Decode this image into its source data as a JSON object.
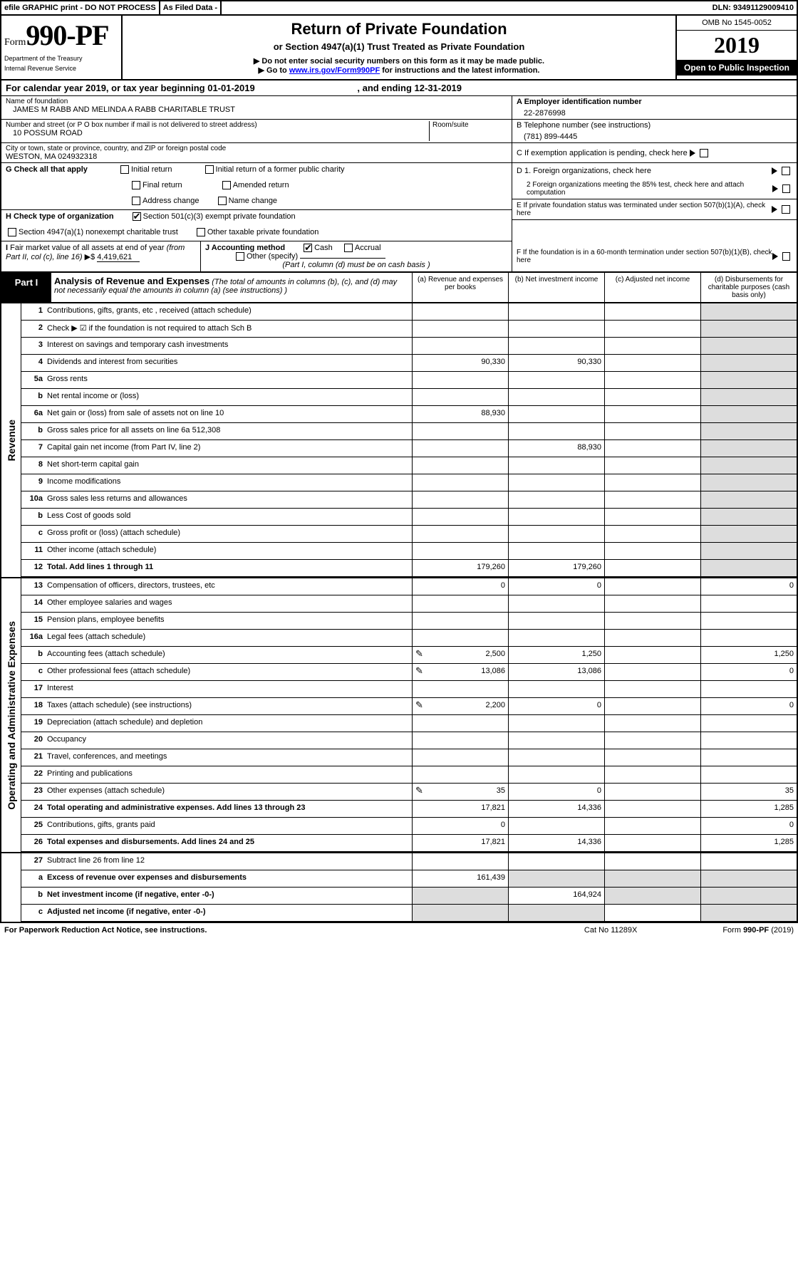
{
  "topbar": {
    "efile": "efile GRAPHIC print - DO NOT PROCESS",
    "asfiled": "As Filed Data -",
    "dln": "DLN: 93491129009410"
  },
  "hdr": {
    "formword": "Form",
    "formnum": "990-PF",
    "dept": "Department of the Treasury",
    "irs": "Internal Revenue Service",
    "title": "Return of Private Foundation",
    "sub": "or Section 4947(a)(1) Trust Treated as Private Foundation",
    "note1": "▶ Do not enter social security numbers on this form as it may be made public.",
    "note2": "▶ Go to ",
    "link": "www.irs.gov/Form990PF",
    "note3": " for instructions and the latest information.",
    "omb": "OMB No 1545-0052",
    "year": "2019",
    "badge": "Open to Public Inspection"
  },
  "cal": {
    "a": "For calendar year 2019, or tax year beginning 01-01-2019",
    "b": ", and ending 12-31-2019"
  },
  "name": {
    "lab": "Name of foundation",
    "val": "JAMES M RABB AND MELINDA A RABB CHARITABLE TRUST"
  },
  "ein": {
    "lab": "A Employer identification number",
    "val": "22-2876998"
  },
  "addr": {
    "lab": "Number and street (or P O  box number if mail is not delivered to street address)",
    "val": "10 POSSUM ROAD",
    "room": "Room/suite"
  },
  "tel": {
    "lab": "B Telephone number (see instructions)",
    "val": "(781) 899-4445"
  },
  "city": {
    "lab": "City or town, state or province, country, and ZIP or foreign postal code",
    "val": "WESTON, MA  024932318"
  },
  "c": {
    "lab": "C If exemption application is pending, check here"
  },
  "g": {
    "lab": "G Check all that apply",
    "o1": "Initial return",
    "o2": "Initial return of a former public charity",
    "o3": "Final return",
    "o4": "Amended return",
    "o5": "Address change",
    "o6": "Name change"
  },
  "d": {
    "d1": "D 1. Foreign organizations, check here",
    "d2": "2 Foreign organizations meeting the 85% test, check here and attach computation"
  },
  "h": {
    "lab": "H Check type of organization",
    "o1": "Section 501(c)(3) exempt private foundation",
    "o2": "Section 4947(a)(1) nonexempt charitable trust",
    "o3": "Other taxable private foundation"
  },
  "e": {
    "lab": "E  If private foundation status was terminated under section 507(b)(1)(A), check here"
  },
  "i": {
    "lab": "I Fair market value of all assets at end of year (from Part II, col  (c), line 16) ▶$ ",
    "val": "4,419,621"
  },
  "j": {
    "lab": "J Accounting method",
    "o1": "Cash",
    "o2": "Accrual",
    "o3": "Other (specify)",
    "note": "(Part I, column (d) must be on cash basis )"
  },
  "f": {
    "lab": "F  If the foundation is in a 60-month termination under section 507(b)(1)(B), check here"
  },
  "part1": {
    "label": "Part I",
    "title": "Analysis of Revenue and Expenses",
    "sub": "(The total of amounts in columns (b), (c), and (d) may not necessarily equal the amounts in column (a) (see instructions) )",
    "ca": "(a)   Revenue and expenses per books",
    "cb": "(b)  Net investment income",
    "cc": "(c)  Adjusted net income",
    "cd": "(d)  Disbursements for charitable purposes (cash basis only)"
  },
  "sec_rev": "Revenue",
  "sec_exp": "Operating and Administrative Expenses",
  "rows": [
    {
      "n": "1",
      "d": "Contributions, gifts, grants, etc , received (attach schedule)"
    },
    {
      "n": "2",
      "d": "Check ▶ ☑ if the foundation is not required to attach Sch B"
    },
    {
      "n": "3",
      "d": "Interest on savings and temporary cash investments"
    },
    {
      "n": "4",
      "d": "Dividends and interest from securities",
      "a": "90,330",
      "b": "90,330"
    },
    {
      "n": "5a",
      "d": "Gross rents"
    },
    {
      "n": "b",
      "d": "Net rental income or (loss)"
    },
    {
      "n": "6a",
      "d": "Net gain or (loss) from sale of assets not on line 10",
      "a": "88,930"
    },
    {
      "n": "b",
      "d": "Gross sales price for all assets on line 6a          512,308"
    },
    {
      "n": "7",
      "d": "Capital gain net income (from Part IV, line 2)",
      "b": "88,930"
    },
    {
      "n": "8",
      "d": "Net short-term capital gain"
    },
    {
      "n": "9",
      "d": "Income modifications"
    },
    {
      "n": "10a",
      "d": "Gross sales less returns and allowances"
    },
    {
      "n": "b",
      "d": "Less  Cost of goods sold"
    },
    {
      "n": "c",
      "d": "Gross profit or (loss) (attach schedule)"
    },
    {
      "n": "11",
      "d": "Other income (attach schedule)"
    },
    {
      "n": "12",
      "d": "Total. Add lines 1 through 11",
      "bold": true,
      "a": "179,260",
      "b": "179,260"
    }
  ],
  "rows2": [
    {
      "n": "13",
      "d": "Compensation of officers, directors, trustees, etc",
      "a": "0",
      "b": "0",
      "dd": "0"
    },
    {
      "n": "14",
      "d": "Other employee salaries and wages"
    },
    {
      "n": "15",
      "d": "Pension plans, employee benefits"
    },
    {
      "n": "16a",
      "d": "Legal fees (attach schedule)"
    },
    {
      "n": "b",
      "d": "Accounting fees (attach schedule)",
      "pen": true,
      "a": "2,500",
      "b": "1,250",
      "dd": "1,250"
    },
    {
      "n": "c",
      "d": "Other professional fees (attach schedule)",
      "pen": true,
      "a": "13,086",
      "b": "13,086",
      "dd": "0"
    },
    {
      "n": "17",
      "d": "Interest"
    },
    {
      "n": "18",
      "d": "Taxes (attach schedule) (see instructions)",
      "pen": true,
      "a": "2,200",
      "b": "0",
      "dd": "0"
    },
    {
      "n": "19",
      "d": "Depreciation (attach schedule) and depletion"
    },
    {
      "n": "20",
      "d": "Occupancy"
    },
    {
      "n": "21",
      "d": "Travel, conferences, and meetings"
    },
    {
      "n": "22",
      "d": "Printing and publications"
    },
    {
      "n": "23",
      "d": "Other expenses (attach schedule)",
      "pen": true,
      "a": "35",
      "b": "0",
      "dd": "35"
    },
    {
      "n": "24",
      "d": "Total operating and administrative expenses. Add lines 13 through 23",
      "bold": true,
      "a": "17,821",
      "b": "14,336",
      "dd": "1,285"
    },
    {
      "n": "25",
      "d": "Contributions, gifts, grants paid",
      "a": "0",
      "dd": "0"
    },
    {
      "n": "26",
      "d": "Total expenses and disbursements. Add lines 24 and 25",
      "bold": true,
      "a": "17,821",
      "b": "14,336",
      "dd": "1,285"
    }
  ],
  "rows3": [
    {
      "n": "27",
      "d": "Subtract line 26 from line 12"
    },
    {
      "n": "a",
      "d": "Excess of revenue over expenses and disbursements",
      "bold": true,
      "a": "161,439"
    },
    {
      "n": "b",
      "d": "Net investment income (if negative, enter -0-)",
      "bold": true,
      "b": "164,924"
    },
    {
      "n": "c",
      "d": "Adjusted net income (if negative, enter -0-)",
      "bold": true
    }
  ],
  "ftr": {
    "l": "For Paperwork Reduction Act Notice, see instructions.",
    "c": "Cat No  11289X",
    "r": "Form 990-PF (2019)"
  }
}
